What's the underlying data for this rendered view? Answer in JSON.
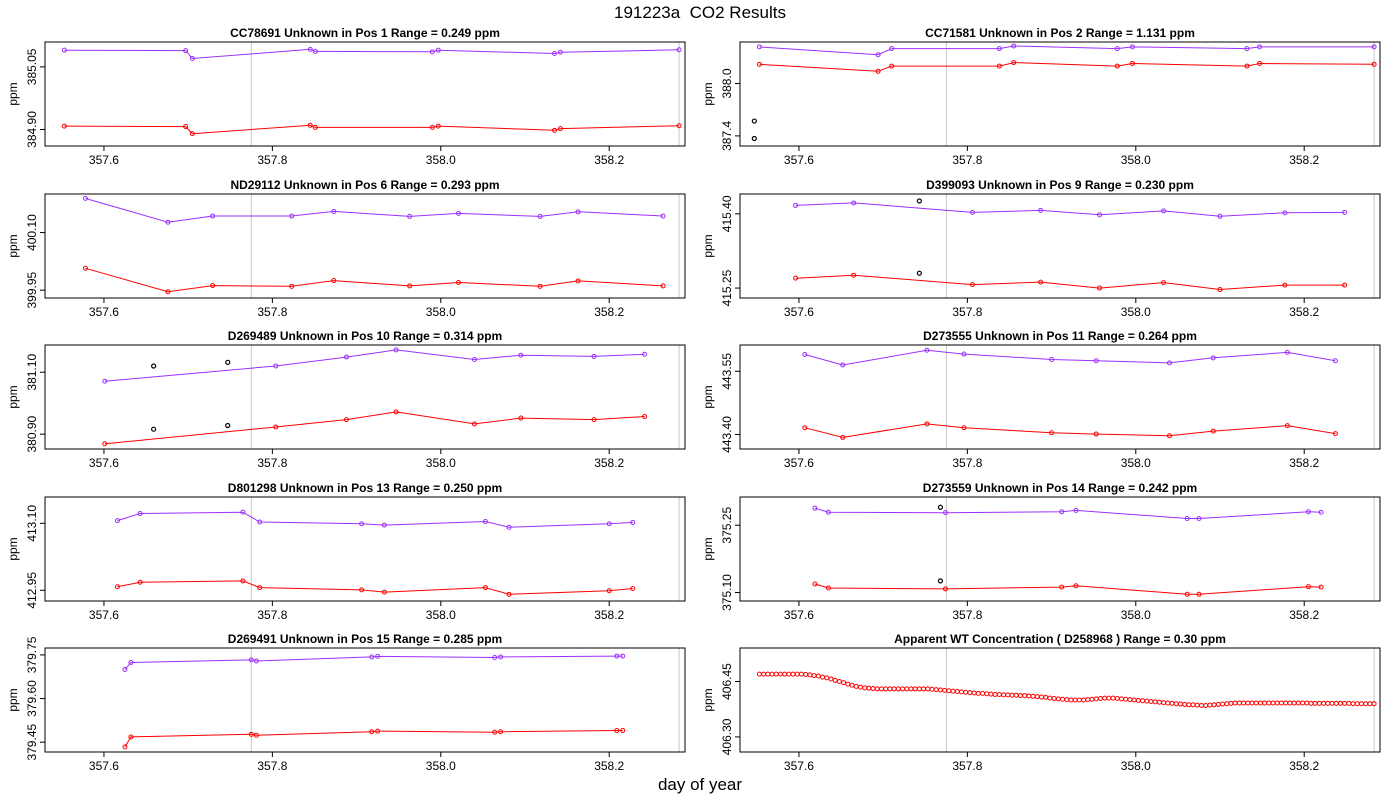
{
  "title": "191223a  CO2 Results",
  "xlabel": "day of year",
  "colors": {
    "upper": "#9b30ff",
    "lower": "#ff0000",
    "reject": "#000000",
    "ref_line": "#c8c8c8",
    "frame": "#000000"
  },
  "x_ticks": [
    "357.6",
    "357.8",
    "358.0",
    "358.2"
  ],
  "chart_data": [
    {
      "type": "line",
      "title": "CC78691    Unknown in Pos 1         Range =  0.249 ppm",
      "ylabel": "ppm",
      "y_ticks": [
        "384.90",
        "385.05"
      ],
      "xlim": [
        357.53,
        358.29
      ],
      "ylim": [
        384.87,
        385.1
      ],
      "ref_x": [
        357.775,
        358.283
      ],
      "series": [
        {
          "name": "upper",
          "x": [
            357.553,
            357.697,
            357.705,
            357.845,
            357.851,
            357.99,
            357.997,
            358.135,
            358.142,
            358.283
          ],
          "y": [
            385.09,
            385.089,
            385.07,
            385.092,
            385.087,
            385.086,
            385.09,
            385.082,
            385.085,
            385.091
          ]
        },
        {
          "name": "lower",
          "x": [
            357.553,
            357.697,
            357.705,
            357.845,
            357.851,
            357.99,
            357.997,
            358.135,
            358.142,
            358.283
          ],
          "y": [
            384.908,
            384.907,
            384.89,
            384.91,
            384.905,
            384.905,
            384.908,
            384.898,
            384.902,
            384.909
          ]
        }
      ],
      "rejects": {
        "x": [],
        "y": []
      }
    },
    {
      "type": "line",
      "title": "CC71581    Unknown in Pos 2         Range =  1.131 ppm",
      "ylabel": "ppm",
      "y_ticks": [
        "387.4",
        "388.0"
      ],
      "xlim": [
        357.53,
        358.29
      ],
      "ylim": [
        387.33,
        388.43
      ],
      "ref_x": [
        357.775,
        358.283
      ],
      "series": [
        {
          "name": "upper",
          "x": [
            357.553,
            357.694,
            357.71,
            357.838,
            357.855,
            357.978,
            357.996,
            358.132,
            358.147,
            358.283
          ],
          "y": [
            388.42,
            388.33,
            388.4,
            388.4,
            388.43,
            388.4,
            388.42,
            388.4,
            388.42,
            388.42
          ]
        },
        {
          "name": "lower",
          "x": [
            357.553,
            357.694,
            357.71,
            357.838,
            357.855,
            357.978,
            357.996,
            358.132,
            358.147,
            358.283
          ],
          "y": [
            388.22,
            388.14,
            388.2,
            388.2,
            388.24,
            388.2,
            388.23,
            388.2,
            388.23,
            388.22
          ]
        }
      ],
      "rejects": {
        "x": [
          357.547,
          357.547
        ],
        "y": [
          387.57,
          387.37
        ]
      }
    },
    {
      "type": "line",
      "title": "ND29112    Unknown in Pos 6         Range =  0.293 ppm",
      "ylabel": "ppm",
      "y_ticks": [
        "399.95",
        "400.10"
      ],
      "xlim": [
        357.53,
        358.29
      ],
      "ylim": [
        399.94,
        400.19
      ],
      "ref_x": [
        357.775,
        358.283
      ],
      "series": [
        {
          "name": "upper",
          "x": [
            357.578,
            357.676,
            357.729,
            357.823,
            357.873,
            357.963,
            358.021,
            358.118,
            358.163,
            358.264
          ],
          "y": [
            400.189,
            400.127,
            400.143,
            400.143,
            400.155,
            400.142,
            400.15,
            400.142,
            400.154,
            400.143
          ]
        },
        {
          "name": "lower",
          "x": [
            357.578,
            357.676,
            357.729,
            357.823,
            357.873,
            357.963,
            358.021,
            358.118,
            358.163,
            358.264
          ],
          "y": [
            400.007,
            399.946,
            399.962,
            399.96,
            399.975,
            399.961,
            399.97,
            399.96,
            399.974,
            399.961
          ]
        }
      ],
      "rejects": {
        "x": [],
        "y": []
      }
    },
    {
      "type": "line",
      "title": "D399093    Unknown in Pos 9         Range =  0.230 ppm",
      "ylabel": "ppm",
      "y_ticks": [
        "415.25",
        "415.40"
      ],
      "xlim": [
        357.53,
        358.29
      ],
      "ylim": [
        415.238,
        415.432
      ],
      "ref_x": [
        357.775,
        358.283
      ],
      "series": [
        {
          "name": "upper",
          "x": [
            357.596,
            357.665,
            357.806,
            357.887,
            357.957,
            358.033,
            358.1,
            358.177,
            358.248
          ],
          "y": [
            415.417,
            415.422,
            415.403,
            415.407,
            415.398,
            415.406,
            415.395,
            415.402,
            415.403
          ]
        },
        {
          "name": "lower",
          "x": [
            357.596,
            357.665,
            357.806,
            357.887,
            357.957,
            358.033,
            358.1,
            358.177,
            358.248
          ],
          "y": [
            415.27,
            415.276,
            415.257,
            415.262,
            415.25,
            415.261,
            415.247,
            415.256,
            415.256
          ]
        }
      ],
      "rejects": {
        "x": [
          357.743,
          357.743
        ],
        "y": [
          415.426,
          415.28
        ]
      }
    },
    {
      "type": "line",
      "title": "D269489    Unknown in Pos 10         Range =  0.314 ppm",
      "ylabel": "ppm",
      "y_ticks": [
        "380.90",
        "381.10"
      ],
      "xlim": [
        357.53,
        358.29
      ],
      "ylim": [
        380.865,
        381.175
      ],
      "ref_x": [
        357.775,
        358.283
      ],
      "series": [
        {
          "name": "upper",
          "x": [
            357.601,
            357.804,
            357.888,
            357.947,
            358.04,
            358.095,
            358.182,
            358.242
          ],
          "y": [
            381.071,
            381.12,
            381.149,
            381.172,
            381.141,
            381.155,
            381.151,
            381.158
          ]
        },
        {
          "name": "lower",
          "x": [
            357.601,
            357.804,
            357.888,
            357.947,
            358.04,
            358.095,
            358.182,
            358.242
          ],
          "y": [
            380.869,
            380.923,
            380.947,
            380.972,
            380.933,
            380.952,
            380.947,
            380.957
          ]
        }
      ],
      "rejects": {
        "x": [
          357.659,
          357.747,
          357.659,
          357.747
        ],
        "y": [
          381.12,
          381.132,
          380.916,
          380.928
        ]
      }
    },
    {
      "type": "line",
      "title": "D273555    Unknown in Pos 11         Range =  0.264 ppm",
      "ylabel": "ppm",
      "y_ticks": [
        "443.40",
        "443.55"
      ],
      "xlim": [
        357.53,
        358.29
      ],
      "ylim": [
        443.375,
        443.603
      ],
      "ref_x": [
        357.775,
        358.283
      ],
      "series": [
        {
          "name": "upper",
          "x": [
            357.607,
            357.652,
            357.752,
            357.796,
            357.9,
            357.953,
            358.04,
            358.092,
            358.18,
            358.237
          ],
          "y": [
            443.59,
            443.565,
            443.6,
            443.591,
            443.578,
            443.575,
            443.57,
            443.582,
            443.595,
            443.575
          ]
        },
        {
          "name": "lower",
          "x": [
            357.607,
            357.652,
            357.752,
            357.796,
            357.9,
            357.953,
            358.04,
            358.092,
            358.18,
            358.237
          ],
          "y": [
            443.416,
            443.393,
            443.425,
            443.416,
            443.404,
            443.401,
            443.397,
            443.408,
            443.421,
            443.402
          ]
        }
      ],
      "rejects": {
        "x": [],
        "y": []
      }
    },
    {
      "type": "line",
      "title": "D801298    Unknown in Pos 13         Range =  0.250 ppm",
      "ylabel": "ppm",
      "y_ticks": [
        "412.95",
        "413.10"
      ],
      "xlim": [
        357.53,
        358.29
      ],
      "ylim": [
        412.935,
        413.15
      ],
      "ref_x": [
        357.775,
        358.283
      ],
      "series": [
        {
          "name": "upper",
          "x": [
            357.616,
            357.643,
            357.765,
            357.785,
            357.906,
            357.933,
            358.053,
            358.081,
            358.2,
            358.228
          ],
          "y": [
            413.106,
            413.122,
            413.125,
            413.103,
            413.099,
            413.096,
            413.104,
            413.091,
            413.099,
            413.102
          ]
        },
        {
          "name": "lower",
          "x": [
            357.616,
            357.643,
            357.765,
            357.785,
            357.906,
            357.933,
            358.053,
            358.081,
            358.2,
            358.228
          ],
          "y": [
            412.958,
            412.968,
            412.971,
            412.956,
            412.951,
            412.946,
            412.956,
            412.941,
            412.949,
            412.954
          ]
        }
      ],
      "rejects": {
        "x": [],
        "y": []
      }
    },
    {
      "type": "line",
      "title": "D273559    Unknown in Pos 14         Range =  0.242 ppm",
      "ylabel": "ppm",
      "y_ticks": [
        "375.10",
        "375.25"
      ],
      "xlim": [
        357.53,
        358.29
      ],
      "ylim": [
        375.09,
        375.304
      ],
      "ref_x": [
        357.775,
        358.283
      ],
      "series": [
        {
          "name": "upper",
          "x": [
            357.619,
            357.635,
            357.774,
            357.912,
            357.929,
            358.061,
            358.075,
            358.205,
            358.22
          ],
          "y": [
            375.288,
            375.279,
            375.278,
            375.28,
            375.283,
            375.265,
            375.265,
            375.28,
            375.279
          ]
        },
        {
          "name": "lower",
          "x": [
            357.619,
            357.635,
            357.774,
            357.912,
            357.929,
            358.061,
            358.075,
            358.205,
            358.22
          ],
          "y": [
            375.119,
            375.11,
            375.108,
            375.112,
            375.115,
            375.096,
            375.096,
            375.113,
            375.112
          ]
        }
      ],
      "rejects": {
        "x": [
          357.768,
          357.768
        ],
        "y": [
          375.29,
          375.126
        ]
      }
    },
    {
      "type": "line",
      "title": "D269491    Unknown in Pos 15         Range =  0.285 ppm",
      "ylabel": "ppm",
      "y_ticks": [
        "379.45",
        "379.60",
        "379.75"
      ],
      "xlim": [
        357.53,
        358.29
      ],
      "ylim": [
        379.43,
        379.76
      ],
      "ref_x": [
        357.775,
        358.283
      ],
      "series": [
        {
          "name": "upper",
          "x": [
            357.625,
            357.632,
            357.775,
            357.781,
            357.918,
            357.925,
            358.064,
            358.071,
            358.209,
            358.216
          ],
          "y": [
            379.7,
            379.724,
            379.733,
            379.729,
            379.743,
            379.745,
            379.741,
            379.743,
            379.746,
            379.746
          ]
        },
        {
          "name": "lower",
          "x": [
            357.625,
            357.632,
            357.775,
            357.781,
            357.918,
            357.925,
            358.064,
            358.071,
            358.209,
            358.216
          ],
          "y": [
            379.434,
            379.468,
            379.477,
            379.474,
            379.486,
            379.488,
            379.484,
            379.486,
            379.49,
            379.49
          ]
        }
      ],
      "rejects": {
        "x": [],
        "y": []
      }
    },
    {
      "type": "scatter",
      "title": "Apparent WT Concentration ( D258968 )          Range = 0.30 ppm",
      "ylabel": "ppm",
      "y_ticks": [
        "406.30",
        "406.45"
      ],
      "xlim": [
        357.53,
        358.29
      ],
      "ylim": [
        406.27,
        406.53
      ],
      "ref_x": [
        357.775,
        358.283
      ],
      "series": [
        {
          "name": "wt",
          "x_start": 357.553,
          "x_step": 0.005,
          "y": [
            406.47,
            406.47,
            406.47,
            406.47,
            406.47,
            406.47,
            406.47,
            406.47,
            406.47,
            406.47,
            406.47,
            406.469,
            406.468,
            406.466,
            406.465,
            406.462,
            406.46,
            406.457,
            406.453,
            406.45,
            406.447,
            406.443,
            406.44,
            406.437,
            406.435,
            406.433,
            406.432,
            406.431,
            406.43,
            406.43,
            406.43,
            406.43,
            406.43,
            406.43,
            406.43,
            406.43,
            406.43,
            406.43,
            406.43,
            406.43,
            406.43,
            406.429,
            406.428,
            406.427,
            406.426,
            406.425,
            406.424,
            406.423,
            406.422,
            406.421,
            406.42,
            406.419,
            406.418,
            406.418,
            406.417,
            406.416,
            406.415,
            406.415,
            406.414,
            406.414,
            406.413,
            406.413,
            406.412,
            406.412,
            406.411,
            406.41,
            406.409,
            406.408,
            406.407,
            406.405,
            406.404,
            406.403,
            406.402,
            406.401,
            406.4,
            406.4,
            406.4,
            406.4,
            406.401,
            406.402,
            406.403,
            406.404,
            406.405,
            406.405,
            406.405,
            406.404,
            406.403,
            406.402,
            406.401,
            406.4,
            406.399,
            406.398,
            406.397,
            406.396,
            406.395,
            406.394,
            406.393,
            406.392,
            406.391,
            406.39,
            406.389,
            406.388,
            406.387,
            406.387,
            406.386,
            406.385,
            406.385,
            406.386,
            406.387,
            406.388,
            406.389,
            406.39,
            406.391,
            406.392,
            406.392,
            406.392,
            406.392,
            406.392,
            406.392,
            406.392,
            406.392,
            406.392,
            406.392,
            406.392,
            406.392,
            406.392,
            406.392,
            406.392,
            406.392,
            406.392,
            406.392,
            406.391,
            406.391,
            406.391,
            406.391,
            406.391,
            406.391,
            406.391,
            406.391,
            406.391,
            406.391,
            406.39,
            406.39,
            406.39,
            406.39,
            406.39,
            406.39
          ]
        }
      ],
      "rejects": {
        "x": [],
        "y": []
      }
    }
  ]
}
